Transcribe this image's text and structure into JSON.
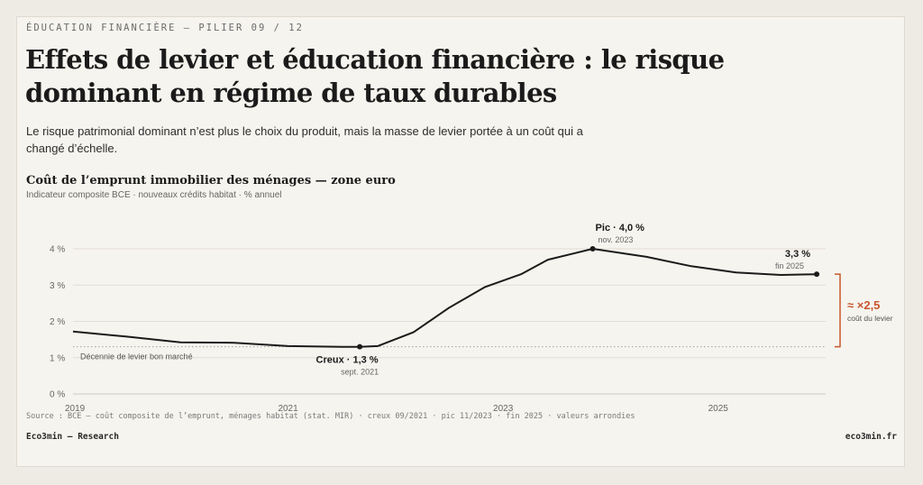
{
  "header": {
    "eyebrow": "ÉDUCATION FINANCIÈRE — PILIER 09 / 12",
    "title": "Effets de levier et éducation financière : le risque dominant en régime de taux durables",
    "subtitle": "Le risque patrimonial dominant n’est plus le choix du produit, mais la masse de levier portée à un coût qui a changé d’échelle."
  },
  "chart_data": {
    "type": "line",
    "title": "Coût de l’emprunt immobilier des ménages — zone euro",
    "subtitle": "Indicateur composite BCE · nouveaux crédits habitat · % annuel",
    "x": [
      "2019-01",
      "2019-07",
      "2020-01",
      "2020-07",
      "2021-01",
      "2021-07",
      "2021-09",
      "2021-11",
      "2022-03",
      "2022-07",
      "2022-11",
      "2023-03",
      "2023-06",
      "2023-11",
      "2024-05",
      "2024-10",
      "2025-03",
      "2025-08",
      "2025-12"
    ],
    "values": [
      1.72,
      1.58,
      1.42,
      1.41,
      1.32,
      1.3,
      1.3,
      1.32,
      1.7,
      2.38,
      2.95,
      3.3,
      3.7,
      4.0,
      3.78,
      3.52,
      3.35,
      3.28,
      3.3
    ],
    "xticks": [
      "2019",
      "2021",
      "2023",
      "2025"
    ],
    "yticks": [
      "0 %",
      "1 %",
      "2 %",
      "3 %",
      "4 %"
    ],
    "ylim": [
      0,
      4.5
    ],
    "grid": true,
    "color": "#1b1b1b",
    "accent": "#c8562e",
    "points": [
      {
        "x": "2021-09",
        "value": 1.3,
        "label": "Creux · 1,3 %",
        "sub": "sept. 2021"
      },
      {
        "x": "2023-11",
        "value": 4.0,
        "label": "Pic · 4,0 %",
        "sub": "nov. 2023"
      },
      {
        "x": "2025-12",
        "value": 3.3,
        "label": "3,3 %",
        "sub": "fin 2025"
      }
    ],
    "reference_label": "Décennie de levier bon marché",
    "ratio": {
      "value": "≈ ×2,5",
      "label": "coût du levier"
    }
  },
  "footer": {
    "source": "Source : BCE — coût composite de l’emprunt, ménages habitat (stat. MIR) · creux 09/2021 · pic 11/2023 · fin 2025 · valeurs arrondies",
    "left": "Eco3min — Research",
    "right": "eco3min.fr"
  }
}
